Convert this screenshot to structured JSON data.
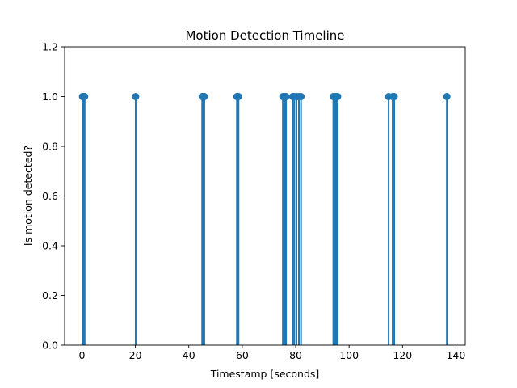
{
  "chart_data": {
    "type": "stem",
    "title": "Motion Detection Timeline",
    "xlabel": "Timestamp [seconds]",
    "ylabel": "Is motion detected?",
    "xlim": [
      -6.5,
      143.5
    ],
    "ylim": [
      0,
      1.2
    ],
    "xticks": [
      0,
      20,
      40,
      60,
      80,
      100,
      120,
      140
    ],
    "yticks": [
      0.0,
      0.2,
      0.4,
      0.6,
      0.8,
      1.0,
      1.2
    ],
    "ytick_labels": [
      "0.0",
      "0.2",
      "0.4",
      "0.6",
      "0.8",
      "1.0",
      "1.2"
    ],
    "grid": false,
    "color": "#1f77b4",
    "series": [
      {
        "x": [
          0.2,
          0.4,
          0.6,
          0.8,
          1.0,
          20.1,
          45.0,
          45.2,
          45.4,
          45.6,
          45.8,
          58.0,
          58.3,
          58.6,
          75.2,
          75.6,
          76.0,
          76.4,
          78.9,
          79.5,
          80.3,
          81.2,
          82.0,
          94.1,
          94.8,
          95.2,
          95.7,
          114.8,
          116.3,
          116.9,
          136.6
        ],
        "y": [
          1,
          1,
          1,
          1,
          1,
          1,
          1,
          1,
          1,
          1,
          1,
          1,
          1,
          1,
          1,
          1,
          1,
          1,
          1,
          1,
          1,
          1,
          1,
          1,
          1,
          1,
          1,
          1,
          1,
          1,
          1
        ]
      }
    ]
  }
}
